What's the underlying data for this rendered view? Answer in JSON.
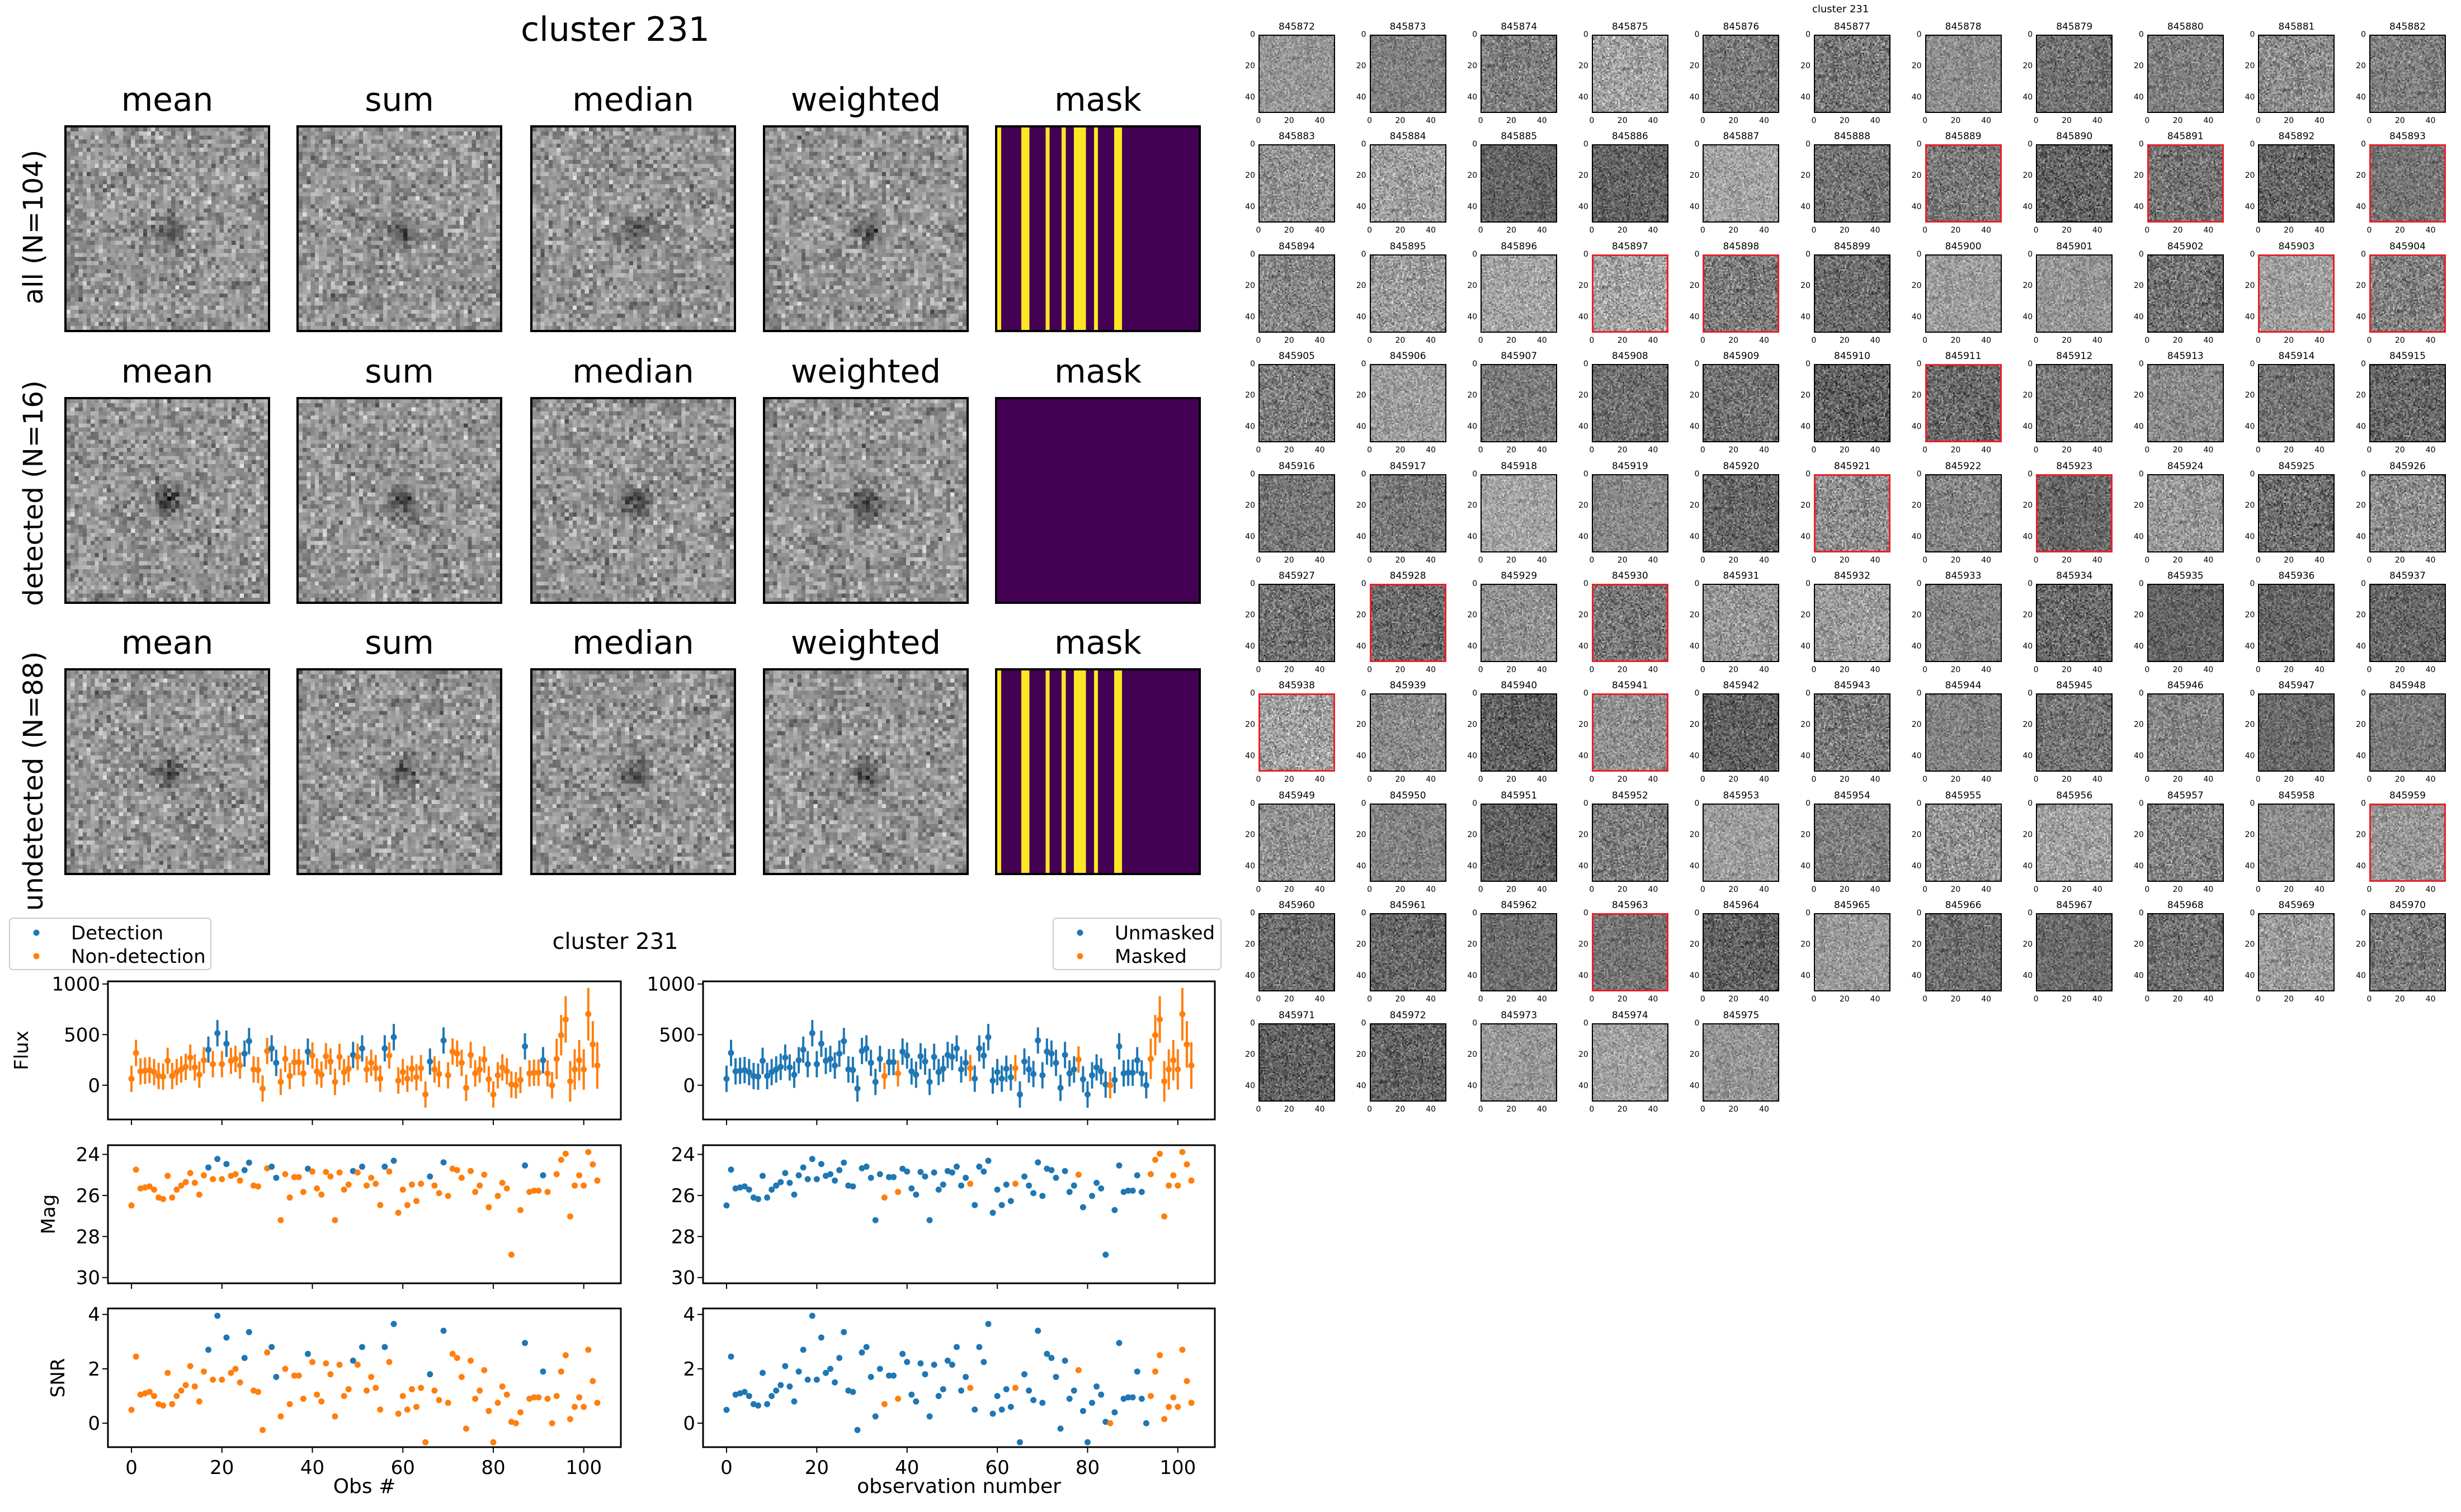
{
  "title": "cluster 231",
  "stack_panel": {
    "column_titles": [
      "mean",
      "sum",
      "median",
      "weighted",
      "mask"
    ],
    "rows": [
      {
        "label": "all (N=104)",
        "mask_stripe_columns": [
          [
            0,
            0
          ],
          [
            6,
            7
          ],
          [
            12,
            12
          ],
          [
            16,
            16
          ],
          [
            19,
            21
          ],
          [
            24,
            24
          ],
          [
            29,
            30
          ]
        ]
      },
      {
        "label": "detected (N=16)",
        "mask_stripe_columns": []
      },
      {
        "label": "undetected (N=88)",
        "mask_stripe_columns": [
          [
            0,
            0
          ],
          [
            6,
            7
          ],
          [
            12,
            12
          ],
          [
            16,
            16
          ],
          [
            19,
            21
          ],
          [
            24,
            24
          ],
          [
            29,
            30
          ]
        ]
      }
    ],
    "colors": {
      "mask_low": "#440154",
      "mask_high": "#fde725"
    }
  },
  "chart_data": {
    "type": "scatter",
    "title": "cluster 231",
    "xlabel_left": "Obs #",
    "xlabel_right": "observation number",
    "ylabels": {
      "flux": "Flux",
      "mag": "Mag",
      "snr": "SNR"
    },
    "xlim": [
      -5.2,
      108.2
    ],
    "xticks": [
      0,
      20,
      40,
      60,
      80,
      100
    ],
    "flux_ylim": [
      -338,
      1026
    ],
    "flux_yticks": [
      0,
      500,
      1000
    ],
    "mag_ylim": [
      30.28,
      23.55
    ],
    "mag_yticks": [
      24,
      26,
      28,
      30
    ],
    "mag_zeropoint": 31,
    "snr_ylim": [
      -0.88,
      4.22
    ],
    "snr_yticks": [
      0,
      2,
      4
    ],
    "legend_left": {
      "position": "upper-left",
      "entries": [
        "Detection",
        "Non-detection"
      ]
    },
    "legend_right": {
      "position": "upper-right",
      "entries": [
        "Unmasked",
        "Masked"
      ]
    },
    "colors": {
      "blue": "#1f77b4",
      "orange": "#ff7f0e"
    },
    "snr": [
      0.49,
      2.45,
      1.05,
      1.1,
      1.15,
      1.0,
      0.7,
      0.65,
      1.85,
      0.7,
      1.0,
      1.2,
      1.4,
      2.1,
      1.35,
      0.8,
      1.9,
      2.7,
      1.6,
      3.95,
      1.6,
      3.15,
      1.85,
      2.0,
      1.5,
      2.4,
      3.35,
      1.2,
      1.15,
      -0.25,
      2.6,
      2.8,
      1.7,
      0.25,
      2.0,
      0.7,
      1.75,
      1.75,
      0.9,
      2.55,
      2.25,
      1.05,
      0.8,
      2.2,
      1.8,
      0.25,
      2.15,
      1.0,
      1.25,
      2.3,
      2.15,
      2.8,
      1.2,
      1.7,
      1.3,
      0.5,
      2.8,
      2.25,
      3.65,
      0.35,
      1.0,
      0.5,
      1.25,
      0.6,
      1.3,
      -0.7,
      1.8,
      1.2,
      0.85,
      3.4,
      0.75,
      2.55,
      2.4,
      1.7,
      -0.2,
      2.3,
      0.9,
      1.2,
      1.95,
      0.45,
      -0.7,
      0.75,
      1.35,
      1.05,
      0.05,
      0.0,
      0.4,
      2.95,
      0.9,
      0.95,
      0.95,
      1.9,
      0.9,
      0.0,
      1.0,
      1.9,
      2.5,
      0.15,
      0.6,
      0.95,
      0.6,
      2.7,
      1.55,
      0.75
    ],
    "flux": [
      64,
      319,
      137,
      143,
      150,
      130,
      91,
      85,
      241,
      91,
      130,
      156,
      182,
      273,
      176,
      104,
      247,
      351,
      208,
      514,
      208,
      410,
      241,
      260,
      195,
      312,
      436,
      156,
      150,
      -33,
      338,
      364,
      221,
      33,
      260,
      91,
      228,
      228,
      117,
      332,
      293,
      137,
      104,
      286,
      234,
      33,
      280,
      130,
      163,
      299,
      280,
      364,
      156,
      221,
      169,
      65,
      364,
      293,
      475,
      46,
      130,
      65,
      163,
      78,
      169,
      -91,
      234,
      156,
      111,
      442,
      98,
      332,
      312,
      221,
      -26,
      299,
      117,
      156,
      254,
      59,
      -91,
      98,
      176,
      137,
      7,
      0,
      52,
      384,
      117,
      124,
      124,
      247,
      117,
      0,
      260,
      494,
      650,
      39,
      156,
      247,
      156,
      702,
      403,
      195
    ],
    "flux_err": [
      130,
      130,
      130,
      130,
      130,
      130,
      130,
      130,
      130,
      130,
      130,
      130,
      130,
      130,
      130,
      130,
      130,
      130,
      130,
      130,
      130,
      130,
      130,
      130,
      130,
      130,
      130,
      130,
      130,
      130,
      130,
      130,
      130,
      130,
      130,
      130,
      130,
      130,
      130,
      130,
      130,
      130,
      130,
      130,
      130,
      130,
      130,
      130,
      130,
      130,
      130,
      130,
      130,
      130,
      130,
      130,
      130,
      130,
      130,
      130,
      130,
      130,
      130,
      130,
      130,
      130,
      130,
      130,
      130,
      130,
      130,
      130,
      130,
      130,
      130,
      130,
      130,
      130,
      130,
      130,
      130,
      130,
      130,
      130,
      130,
      130,
      130,
      130,
      130,
      130,
      130,
      130,
      130,
      130,
      200,
      200,
      230,
      200,
      200,
      200,
      200,
      260,
      230,
      230
    ],
    "detected_indices": [
      17,
      19,
      21,
      25,
      26,
      31,
      32,
      39,
      49,
      51,
      56,
      58,
      66,
      69,
      87,
      91
    ],
    "masked_indices": [
      35,
      38,
      54,
      64,
      78,
      85,
      94,
      95,
      96,
      97,
      98,
      99,
      100,
      101,
      102,
      103
    ]
  },
  "cutouts": {
    "suptitle": "cluster 231",
    "ticks": [
      "0",
      "20",
      "40"
    ],
    "ids": [
      "845872",
      "845873",
      "845874",
      "845875",
      "845876",
      "845877",
      "845878",
      "845879",
      "845880",
      "845881",
      "845882",
      "845883",
      "845884",
      "845885",
      "845886",
      "845887",
      "845888",
      "845889",
      "845890",
      "845891",
      "845892",
      "845893",
      "845894",
      "845895",
      "845896",
      "845897",
      "845898",
      "845899",
      "845900",
      "845901",
      "845902",
      "845903",
      "845904",
      "845905",
      "845906",
      "845907",
      "845908",
      "845909",
      "845910",
      "845911",
      "845912",
      "845913",
      "845914",
      "845915",
      "845916",
      "845917",
      "845918",
      "845919",
      "845920",
      "845921",
      "845922",
      "845923",
      "845924",
      "845925",
      "845926",
      "845927",
      "845928",
      "845929",
      "845930",
      "845931",
      "845932",
      "845933",
      "845934",
      "845935",
      "845936",
      "845937",
      "845938",
      "845939",
      "845940",
      "845941",
      "845942",
      "845943",
      "845944",
      "845945",
      "845946",
      "845947",
      "845948",
      "845949",
      "845950",
      "845951",
      "845952",
      "845953",
      "845954",
      "845955",
      "845956",
      "845957",
      "845958",
      "845959",
      "845960",
      "845961",
      "845962",
      "845963",
      "845964",
      "845965",
      "845966",
      "845967",
      "845968",
      "845969",
      "845970",
      "845971",
      "845972",
      "845973",
      "845974",
      "845975"
    ],
    "highlight_color": "#e8202a"
  }
}
